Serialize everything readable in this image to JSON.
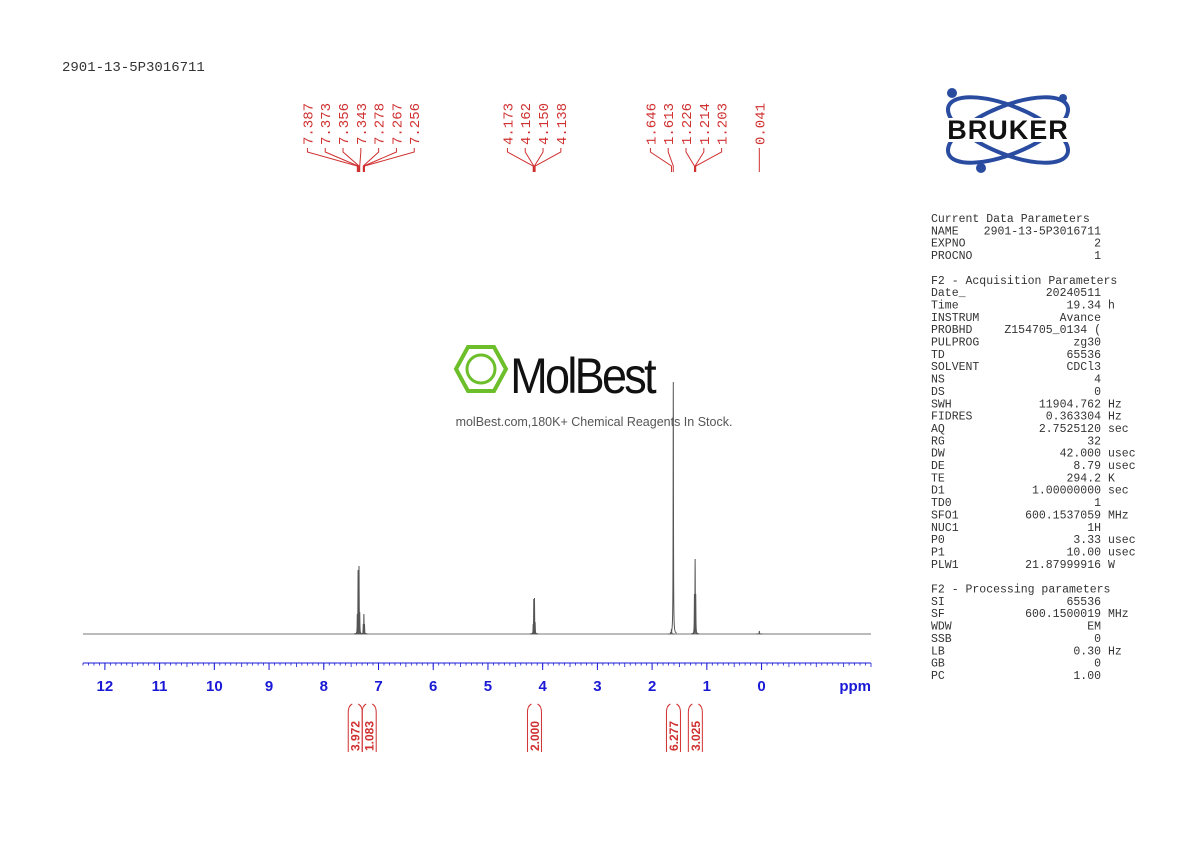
{
  "sample_id": "2901-13-5P3016711",
  "logo": {
    "brand": "BRUKER"
  },
  "watermark": {
    "name": "MolBest",
    "tagline": "molBest.com,180K+ Chemical Reagents In Stock."
  },
  "chart_data": {
    "type": "nmr",
    "x_label": "ppm",
    "xlim": [
      12.4,
      -2.0
    ],
    "xticks": [
      12,
      11,
      10,
      9,
      8,
      7,
      6,
      5,
      4,
      3,
      2,
      1,
      0
    ],
    "ylim": [
      0,
      260
    ],
    "color": "#555555",
    "label_color": "#d03030",
    "axis_color": "#1a1ad6",
    "peaks": [
      {
        "ppm": 7.387,
        "height": 20
      },
      {
        "ppm": 7.373,
        "height": 64
      },
      {
        "ppm": 7.356,
        "height": 68
      },
      {
        "ppm": 7.343,
        "height": 22
      },
      {
        "ppm": 7.278,
        "height": 10
      },
      {
        "ppm": 7.267,
        "height": 20
      },
      {
        "ppm": 7.256,
        "height": 10
      },
      {
        "ppm": 4.173,
        "height": 10
      },
      {
        "ppm": 4.162,
        "height": 35
      },
      {
        "ppm": {
          "value": 4.15,
          "label": "4.150"
        },
        "height": 36
      },
      {
        "ppm": 4.138,
        "height": 12
      },
      {
        "ppm": 1.646,
        "height": 5
      },
      {
        "ppm": 1.613,
        "height": 252
      },
      {
        "ppm": 1.226,
        "height": 40
      },
      {
        "ppm": 1.214,
        "height": 75
      },
      {
        "ppm": 1.203,
        "height": 40
      },
      {
        "ppm": 0.041,
        "height": 3
      }
    ],
    "integrals": [
      {
        "range": [
          7.55,
          7.3
        ],
        "value": 3.972
      },
      {
        "range": [
          7.29,
          7.05
        ],
        "value": 1.083
      },
      {
        "range": [
          4.25,
          4.05
        ],
        "value": 2,
        "label": "2.000"
      },
      {
        "range": [
          1.72,
          1.5
        ],
        "value": 6.277
      },
      {
        "range": [
          1.3,
          1.12
        ],
        "value": 3.025
      }
    ]
  },
  "parameters": [
    {
      "title": "Current Data Parameters",
      "rows": [
        [
          "NAME",
          "2901-13-5P3016711"
        ],
        [
          "EXPNO",
          "2"
        ],
        [
          "PROCNO",
          "1"
        ]
      ]
    },
    {
      "title": "F2 - Acquisition Parameters",
      "rows": [
        [
          "Date_",
          "20240511"
        ],
        [
          "Time",
          "19.34",
          "h"
        ],
        [
          "INSTRUM",
          "Avance"
        ],
        [
          "PROBHD",
          "Z154705_0134 ("
        ],
        [
          "PULPROG",
          "zg30"
        ],
        [
          "TD",
          "65536"
        ],
        [
          "SOLVENT",
          "CDCl3"
        ],
        [
          "NS",
          "4"
        ],
        [
          "DS",
          "0"
        ],
        [
          "SWH",
          "11904.762",
          "Hz"
        ],
        [
          "FIDRES",
          "0.363304",
          "Hz"
        ],
        [
          "AQ",
          "2.7525120",
          "sec"
        ],
        [
          "RG",
          "32"
        ],
        [
          "DW",
          "42.000",
          "usec"
        ],
        [
          "DE",
          "8.79",
          "usec"
        ],
        [
          "TE",
          "294.2",
          "K"
        ],
        [
          "D1",
          "1.00000000",
          "sec"
        ],
        [
          "TD0",
          "1"
        ],
        [
          "SFO1",
          "600.1537059",
          "MHz"
        ],
        [
          "NUC1",
          "1H"
        ],
        [
          "P0",
          "3.33",
          "usec"
        ],
        [
          "P1",
          "10.00",
          "usec"
        ],
        [
          "PLW1",
          "21.87999916",
          "W"
        ]
      ]
    },
    {
      "title": "F2 - Processing parameters",
      "rows": [
        [
          "SI",
          "65536"
        ],
        [
          "SF",
          "600.1500019",
          "MHz"
        ],
        [
          "WDW",
          "EM"
        ],
        [
          "SSB",
          "0"
        ],
        [
          "LB",
          "0.30",
          "Hz"
        ],
        [
          "GB",
          "0"
        ],
        [
          "PC",
          "1.00"
        ]
      ]
    }
  ]
}
